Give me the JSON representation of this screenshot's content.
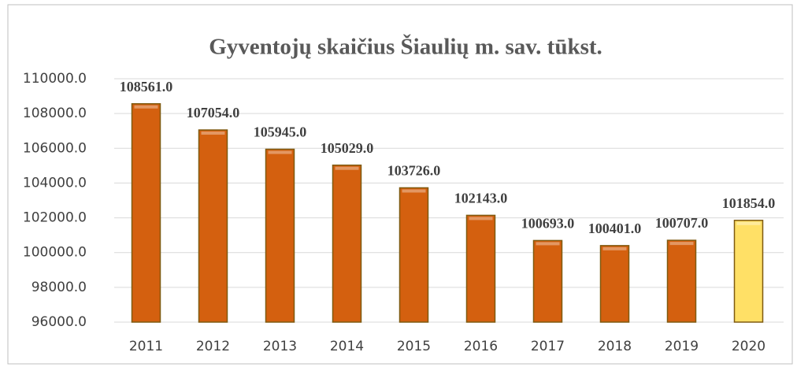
{
  "chart_data": {
    "type": "bar",
    "title": "Gyventojų skaičius Šiaulių m. sav. tūkst.",
    "categories": [
      "2011",
      "2012",
      "2013",
      "2014",
      "2015",
      "2016",
      "2017",
      "2018",
      "2019",
      "2020"
    ],
    "values": [
      108561,
      107054,
      105945,
      105029,
      103726,
      102143,
      100693,
      100401,
      100707,
      101854
    ],
    "value_labels": [
      "108561.0",
      "107054.0",
      "105945.0",
      "105029.0",
      "103726.0",
      "102143.0",
      "100693.0",
      "100401.0",
      "100707.0",
      "101854.0"
    ],
    "colors": [
      "#d4600f",
      "#d4600f",
      "#d4600f",
      "#d4600f",
      "#d4600f",
      "#d4600f",
      "#d4600f",
      "#d4600f",
      "#d4600f",
      "#ffe066"
    ],
    "ylim": [
      96000,
      110000
    ],
    "yticks": [
      {
        "value": 96000,
        "label": "96000.0"
      },
      {
        "value": 98000,
        "label": "98000.0"
      },
      {
        "value": 100000,
        "label": "100000.0"
      },
      {
        "value": 102000,
        "label": "102000.0"
      },
      {
        "value": 104000,
        "label": "104000.0"
      },
      {
        "value": 106000,
        "label": "106000.0"
      },
      {
        "value": 108000,
        "label": "108000.0"
      },
      {
        "value": 110000,
        "label": "110000.0"
      }
    ],
    "grid": true
  }
}
